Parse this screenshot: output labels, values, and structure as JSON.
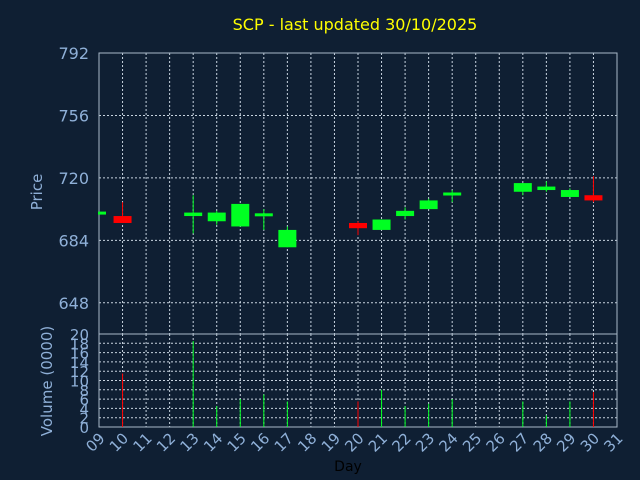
{
  "colors": {
    "background": "#0f1f33",
    "up": "#00ff22",
    "down": "#ff0000",
    "title": "#ffff00",
    "axis_text": "#8fb0d8",
    "grid": "#c8d4e0"
  },
  "chart_data": [
    {
      "type": "candlestick",
      "title": "SCP - last updated 30/10/2025",
      "ylabel": "Price",
      "xlabel": "",
      "ylim": [
        630,
        792
      ],
      "yticks": [
        792,
        756,
        720,
        684,
        648
      ],
      "grid": true,
      "x_categories": [
        "09",
        "10",
        "11",
        "12",
        "13",
        "14",
        "15",
        "16",
        "17",
        "18",
        "19",
        "20",
        "21",
        "22",
        "23",
        "24",
        "25",
        "26",
        "27",
        "28",
        "29",
        "30",
        "31"
      ],
      "candles": [
        {
          "x": "09",
          "open": 700,
          "close": 700,
          "high": 700,
          "low": 700,
          "dir": "flat",
          "partial": true
        },
        {
          "x": "10",
          "open": 698,
          "close": 694,
          "high": 706,
          "low": 694,
          "dir": "down"
        },
        {
          "x": "13",
          "open": 698,
          "close": 700,
          "high": 710,
          "low": 688,
          "dir": "up"
        },
        {
          "x": "14",
          "open": 695,
          "close": 700,
          "high": 701,
          "low": 693,
          "dir": "up"
        },
        {
          "x": "15",
          "open": 692,
          "close": 705,
          "high": 705,
          "low": 692,
          "dir": "up"
        },
        {
          "x": "16",
          "open": 698,
          "close": 699,
          "high": 702,
          "low": 690,
          "dir": "up"
        },
        {
          "x": "17",
          "open": 680,
          "close": 690,
          "high": 692,
          "low": 680,
          "dir": "up"
        },
        {
          "x": "20",
          "open": 694,
          "close": 691,
          "high": 695,
          "low": 687,
          "dir": "down"
        },
        {
          "x": "21",
          "open": 690,
          "close": 696,
          "high": 696,
          "low": 690,
          "dir": "up"
        },
        {
          "x": "22",
          "open": 698,
          "close": 701,
          "high": 703,
          "low": 696,
          "dir": "up"
        },
        {
          "x": "23",
          "open": 702,
          "close": 707,
          "high": 708,
          "low": 702,
          "dir": "up"
        },
        {
          "x": "24",
          "open": 710,
          "close": 711,
          "high": 713,
          "low": 706,
          "dir": "up"
        },
        {
          "x": "27",
          "open": 712,
          "close": 717,
          "high": 717,
          "low": 710,
          "dir": "up"
        },
        {
          "x": "28",
          "open": 713,
          "close": 715,
          "high": 718,
          "low": 712,
          "dir": "up"
        },
        {
          "x": "29",
          "open": 709,
          "close": 713,
          "high": 714,
          "low": 709,
          "dir": "up"
        },
        {
          "x": "30",
          "open": 710,
          "close": 707,
          "high": 721,
          "low": 706,
          "dir": "down"
        }
      ]
    },
    {
      "type": "bar",
      "ylabel": "Volume (0000)",
      "xlabel": "Day",
      "ylim": [
        0,
        20
      ],
      "yticks": [
        0,
        2,
        4,
        6,
        8,
        10,
        12,
        14,
        16,
        18,
        20
      ],
      "grid": true,
      "x_categories": [
        "09",
        "10",
        "11",
        "12",
        "13",
        "14",
        "15",
        "16",
        "17",
        "18",
        "19",
        "20",
        "21",
        "22",
        "23",
        "24",
        "25",
        "26",
        "27",
        "28",
        "29",
        "30",
        "31"
      ],
      "bars": [
        {
          "x": "10",
          "value": 11.5,
          "dir": "down"
        },
        {
          "x": "13",
          "value": 18.5,
          "dir": "up"
        },
        {
          "x": "14",
          "value": 4.5,
          "dir": "up"
        },
        {
          "x": "15",
          "value": 6.0,
          "dir": "up"
        },
        {
          "x": "16",
          "value": 7.0,
          "dir": "up"
        },
        {
          "x": "17",
          "value": 5.5,
          "dir": "up"
        },
        {
          "x": "20",
          "value": 5.5,
          "dir": "down"
        },
        {
          "x": "21",
          "value": 8.0,
          "dir": "up"
        },
        {
          "x": "22",
          "value": 4.5,
          "dir": "up"
        },
        {
          "x": "23",
          "value": 5.0,
          "dir": "up"
        },
        {
          "x": "24",
          "value": 6.0,
          "dir": "up"
        },
        {
          "x": "27",
          "value": 5.5,
          "dir": "up"
        },
        {
          "x": "28",
          "value": 2.5,
          "dir": "up"
        },
        {
          "x": "29",
          "value": 5.5,
          "dir": "up"
        },
        {
          "x": "30",
          "value": 7.5,
          "dir": "down"
        }
      ]
    }
  ]
}
